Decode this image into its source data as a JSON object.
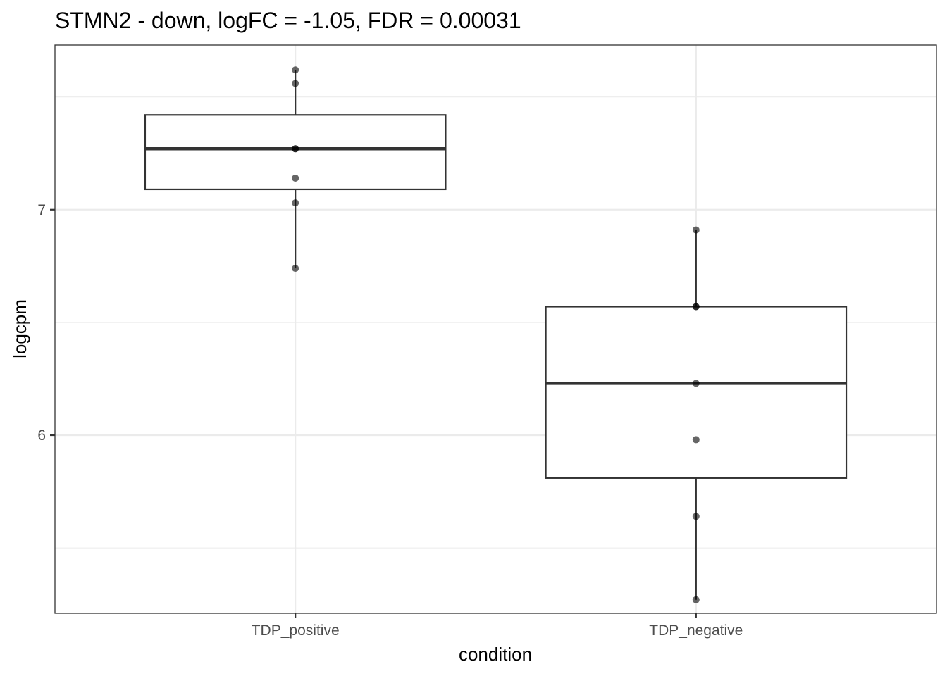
{
  "chart_data": {
    "type": "box",
    "title": "STMN2 - down, logFC = -1.05, FDR = 0.00031",
    "xlabel": "condition",
    "ylabel": "logcpm",
    "categories": [
      "TDP_positive",
      "TDP_negative"
    ],
    "ylim": [
      5.21,
      7.73
    ],
    "y_ticks": [
      6,
      7
    ],
    "y_tick_labels": [
      "6",
      "7"
    ],
    "grid": true,
    "boxes": [
      {
        "category": "TDP_positive",
        "q1": 7.09,
        "median": 7.27,
        "q3": 7.42,
        "whisker_low": 6.74,
        "whisker_high": 7.62
      },
      {
        "category": "TDP_negative",
        "q1": 5.81,
        "median": 6.23,
        "q3": 6.57,
        "whisker_low": 5.27,
        "whisker_high": 6.91
      }
    ],
    "points": [
      {
        "category": "TDP_positive",
        "values": [
          7.62,
          7.56,
          7.27,
          7.27,
          7.14,
          7.03,
          6.74
        ]
      },
      {
        "category": "TDP_negative",
        "values": [
          6.91,
          6.57,
          6.57,
          6.23,
          5.98,
          5.64,
          5.27
        ]
      }
    ]
  }
}
